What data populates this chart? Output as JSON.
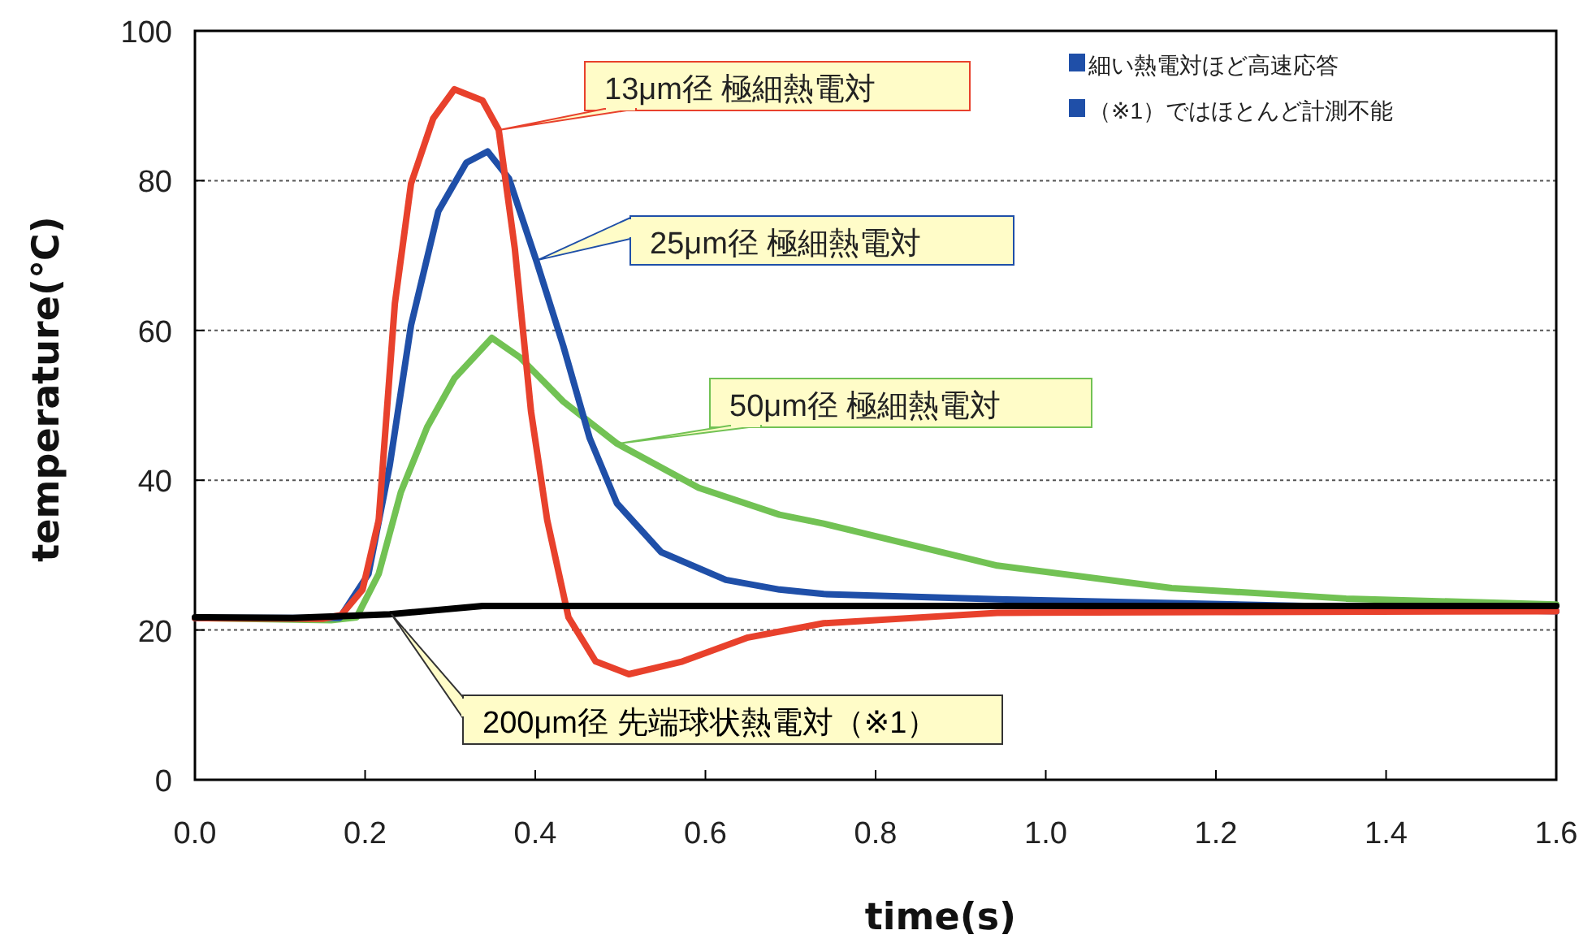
{
  "chart_data": {
    "type": "line",
    "xlabel": "time(s)",
    "ylabel": "temperature(℃)",
    "xlim": [
      0,
      1.6
    ],
    "ylim": [
      0,
      100
    ],
    "xticks": [
      {
        "value": 0,
        "label": "0.0"
      },
      0.2,
      0.4,
      0.6,
      0.8,
      {
        "value": 1,
        "label": "1.0"
      },
      1.2,
      1.4,
      1.6
    ],
    "yticks": [
      0,
      20,
      40,
      60,
      80,
      100
    ],
    "grid": "y",
    "annotations": [
      "細い熱電対ほど高速応答",
      "（※1）ではほとんど計測不能"
    ],
    "series": [
      {
        "name": "13μm径 極細熱電対",
        "color": "#e8412c",
        "x": [
          0,
          0.15,
          0.172,
          0.197,
          0.216,
          0.235,
          0.254,
          0.28,
          0.305,
          0.338,
          0.357,
          0.376,
          0.395,
          0.414,
          0.439,
          0.471,
          0.51,
          0.573,
          0.65,
          0.739,
          0.943,
          1.2,
          1.6
        ],
        "values": [
          21.6,
          21.5,
          22,
          25.4,
          34.7,
          63.6,
          79.6,
          88.3,
          92.2,
          90.7,
          86.8,
          70.9,
          49.2,
          34.7,
          21.7,
          15.8,
          14.1,
          15.8,
          19,
          20.9,
          22.3,
          22.4,
          22.5
        ]
      },
      {
        "name": "25μm径 極細熱電対",
        "color": "#1f4fa8",
        "x": [
          0,
          0.17,
          0.204,
          0.229,
          0.254,
          0.286,
          0.319,
          0.344,
          0.369,
          0.401,
          0.433,
          0.464,
          0.496,
          0.548,
          0.624,
          0.687,
          0.739,
          0.943,
          1.6
        ],
        "values": [
          21.6,
          21.6,
          27.5,
          42,
          60.7,
          75.9,
          82.4,
          83.9,
          80.3,
          69.4,
          57.9,
          45.6,
          36.9,
          30.4,
          26.7,
          25.4,
          24.8,
          24.1,
          22.5
        ]
      },
      {
        "name": "50μm径 極細熱電対",
        "color": "#72c254",
        "x": [
          0,
          0.16,
          0.19,
          0.216,
          0.242,
          0.273,
          0.305,
          0.349,
          0.382,
          0.433,
          0.496,
          0.592,
          0.687,
          0.739,
          0.943,
          1.148,
          1.353,
          1.6
        ],
        "values": [
          21.6,
          21.3,
          21.7,
          27.5,
          38.4,
          47.1,
          53.6,
          59,
          56.4,
          50.5,
          44.9,
          39,
          35.4,
          34.2,
          28.6,
          25.6,
          24.2,
          23.4
        ]
      },
      {
        "name": "200μm径 先端球状熱電対（※1）",
        "color": "#000000",
        "x": [
          0,
          0.115,
          0.229,
          0.338,
          0.6,
          1.0,
          1.6
        ],
        "values": [
          21.7,
          21.6,
          22.1,
          23.2,
          23.2,
          23.2,
          23.2
        ]
      }
    ]
  }
}
